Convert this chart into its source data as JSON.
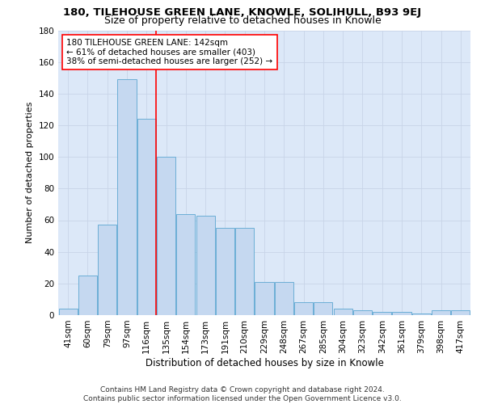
{
  "title1": "180, TILEHOUSE GREEN LANE, KNOWLE, SOLIHULL, B93 9EJ",
  "title2": "Size of property relative to detached houses in Knowle",
  "xlabel": "Distribution of detached houses by size in Knowle",
  "ylabel": "Number of detached properties",
  "categories": [
    "41sqm",
    "60sqm",
    "79sqm",
    "97sqm",
    "116sqm",
    "135sqm",
    "154sqm",
    "173sqm",
    "191sqm",
    "210sqm",
    "229sqm",
    "248sqm",
    "267sqm",
    "285sqm",
    "304sqm",
    "323sqm",
    "342sqm",
    "361sqm",
    "379sqm",
    "398sqm",
    "417sqm"
  ],
  "values": [
    4,
    25,
    57,
    149,
    124,
    100,
    64,
    63,
    55,
    55,
    21,
    21,
    8,
    8,
    4,
    3,
    2,
    2,
    1,
    3,
    3
  ],
  "bar_color": "#c5d8f0",
  "bar_edge_color": "#6baed6",
  "vline_x": 4.5,
  "vline_color": "red",
  "annotation_text": "180 TILEHOUSE GREEN LANE: 142sqm\n← 61% of detached houses are smaller (403)\n38% of semi-detached houses are larger (252) →",
  "annotation_box_color": "white",
  "annotation_box_edge": "red",
  "ylim": [
    0,
    180
  ],
  "yticks": [
    0,
    20,
    40,
    60,
    80,
    100,
    120,
    140,
    160,
    180
  ],
  "grid_color": "#c8d4e8",
  "background_color": "#dce8f8",
  "footer_text": "Contains HM Land Registry data © Crown copyright and database right 2024.\nContains public sector information licensed under the Open Government Licence v3.0.",
  "title1_fontsize": 9.5,
  "title2_fontsize": 9,
  "xlabel_fontsize": 8.5,
  "ylabel_fontsize": 8,
  "tick_fontsize": 7.5,
  "annotation_fontsize": 7.5,
  "footer_fontsize": 6.5
}
